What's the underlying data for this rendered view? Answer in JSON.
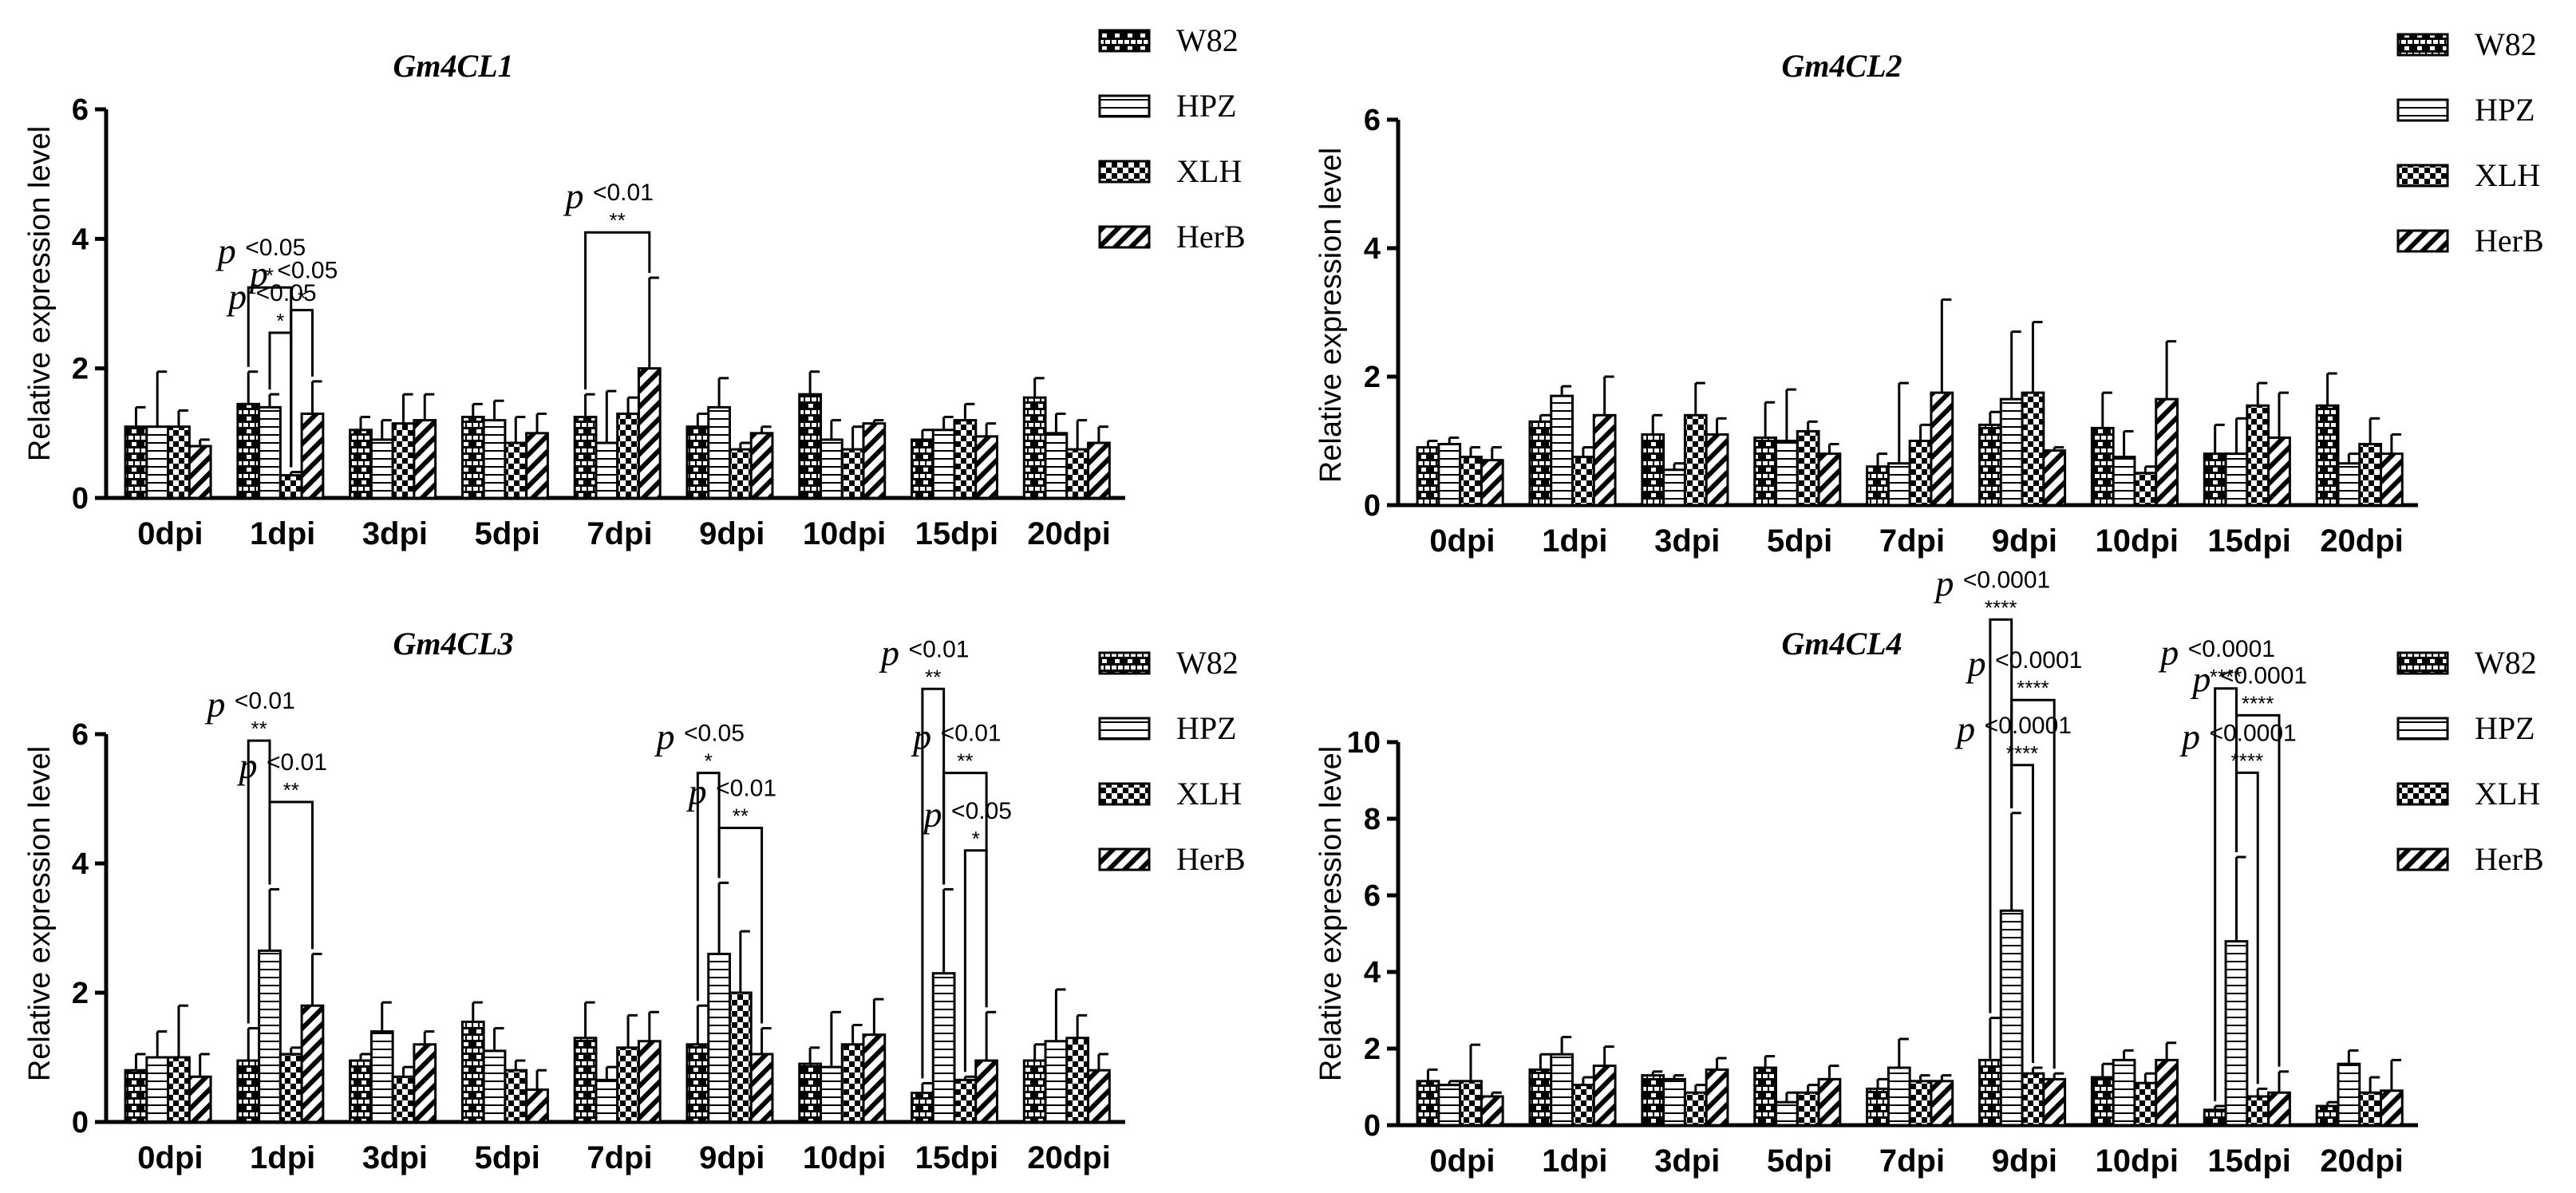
{
  "legend": [
    "W82",
    "HPZ",
    "XLH",
    "HerB"
  ],
  "chart_data": [
    {
      "type": "bar",
      "title": "Gm4CL1",
      "ylabel": "Relative  expression level",
      "xlabel": "",
      "ylim": [
        0,
        6
      ],
      "yticks": [
        "0",
        "2",
        "4",
        "6"
      ],
      "categories": [
        "0dpi",
        "1dpi",
        "3dpi",
        "5dpi",
        "7dpi",
        "9dpi",
        "10dpi",
        "15dpi",
        "20dpi"
      ],
      "series": [
        {
          "name": "W82",
          "values": [
            1.1,
            1.45,
            1.05,
            1.25,
            1.25,
            1.1,
            1.6,
            0.9,
            1.55
          ],
          "errors": [
            0.3,
            0.5,
            0.2,
            0.2,
            0.35,
            0.2,
            0.35,
            0.15,
            0.3
          ]
        },
        {
          "name": "HPZ",
          "values": [
            1.1,
            1.4,
            0.9,
            1.2,
            0.85,
            1.4,
            0.9,
            1.05,
            1.0
          ],
          "errors": [
            0.85,
            0.2,
            0.3,
            0.3,
            0.8,
            0.45,
            0.3,
            0.2,
            0.3
          ]
        },
        {
          "name": "XLH",
          "values": [
            1.1,
            0.35,
            1.15,
            0.85,
            1.3,
            0.75,
            0.75,
            1.2,
            0.75
          ],
          "errors": [
            0.25,
            0.05,
            0.45,
            0.4,
            0.25,
            0.1,
            0.35,
            0.25,
            0.45
          ]
        },
        {
          "name": "HerB",
          "values": [
            0.8,
            1.3,
            1.2,
            1.0,
            2.0,
            1.0,
            1.15,
            0.95,
            0.85
          ],
          "errors": [
            0.1,
            0.5,
            0.4,
            0.3,
            1.4,
            0.1,
            0.05,
            0.2,
            0.25
          ]
        }
      ],
      "annotations": [
        {
          "label": "p <0.05",
          "stars": "*",
          "cat": 1,
          "from": 0,
          "to": 2,
          "level": 3.25
        },
        {
          "label": "p <0.05",
          "stars": "*",
          "cat": 1,
          "from": 2,
          "to": 3,
          "level": 2.9
        },
        {
          "label": "p <0.05",
          "stars": "*",
          "cat": 1,
          "from": 1,
          "to": 2,
          "level": 2.55
        },
        {
          "label": "p <0.01",
          "stars": "**",
          "cat": 4,
          "from": 0,
          "to": 3,
          "level": 4.1
        }
      ]
    },
    {
      "type": "bar",
      "title": "Gm4CL2",
      "ylabel": "Relative  expression level",
      "xlabel": "",
      "ylim": [
        0,
        6
      ],
      "yticks": [
        "0",
        "2",
        "4",
        "6"
      ],
      "categories": [
        "0dpi",
        "1dpi",
        "3dpi",
        "5dpi",
        "7dpi",
        "9dpi",
        "10dpi",
        "15dpi",
        "20dpi"
      ],
      "series": [
        {
          "name": "W82",
          "values": [
            0.9,
            1.3,
            1.1,
            1.05,
            0.6,
            1.25,
            1.2,
            0.8,
            1.55
          ],
          "errors": [
            0.1,
            0.1,
            0.3,
            0.55,
            0.2,
            0.2,
            0.55,
            0.45,
            0.5
          ]
        },
        {
          "name": "HPZ",
          "values": [
            0.95,
            1.7,
            0.55,
            1.0,
            0.65,
            1.65,
            0.75,
            0.8,
            0.65
          ],
          "errors": [
            0.1,
            0.15,
            0.1,
            0.8,
            1.25,
            1.05,
            0.4,
            0.55,
            0.15
          ]
        },
        {
          "name": "XLH",
          "values": [
            0.75,
            0.75,
            1.4,
            1.15,
            1.0,
            1.75,
            0.5,
            1.55,
            0.95
          ],
          "errors": [
            0.15,
            0.15,
            0.5,
            0.15,
            0.25,
            1.1,
            0.1,
            0.35,
            0.4
          ]
        },
        {
          "name": "HerB",
          "values": [
            0.7,
            1.4,
            1.1,
            0.8,
            1.75,
            0.85,
            1.65,
            1.05,
            0.8
          ],
          "errors": [
            0.2,
            0.6,
            0.25,
            0.15,
            1.45,
            0.05,
            0.9,
            0.7,
            0.3
          ]
        }
      ],
      "annotations": []
    },
    {
      "type": "bar",
      "title": "Gm4CL3",
      "ylabel": "Relative  expression level",
      "xlabel": "",
      "ylim": [
        0,
        6
      ],
      "yticks": [
        "0",
        "2",
        "4",
        "6"
      ],
      "categories": [
        "0dpi",
        "1dpi",
        "3dpi",
        "5dpi",
        "7dpi",
        "9dpi",
        "10dpi",
        "15dpi",
        "20dpi"
      ],
      "series": [
        {
          "name": "W82",
          "values": [
            0.8,
            0.95,
            0.95,
            1.55,
            1.3,
            1.2,
            0.9,
            0.45,
            0.95
          ],
          "errors": [
            0.25,
            0.5,
            0.1,
            0.3,
            0.55,
            0.6,
            0.25,
            0.15,
            0.25
          ]
        },
        {
          "name": "HPZ",
          "values": [
            1.0,
            2.65,
            1.4,
            1.1,
            0.65,
            2.6,
            0.85,
            2.3,
            1.25
          ],
          "errors": [
            0.4,
            0.95,
            0.45,
            0.35,
            0.2,
            1.1,
            0.85,
            1.3,
            0.8
          ]
        },
        {
          "name": "XLH",
          "values": [
            1.0,
            1.05,
            0.7,
            0.8,
            1.15,
            2.0,
            1.2,
            0.65,
            1.3
          ],
          "errors": [
            0.8,
            0.1,
            0.15,
            0.15,
            0.5,
            0.95,
            0.3,
            0.05,
            0.35
          ]
        },
        {
          "name": "HerB",
          "values": [
            0.7,
            1.8,
            1.2,
            0.5,
            1.25,
            1.05,
            1.35,
            0.95,
            0.8
          ],
          "errors": [
            0.35,
            0.8,
            0.2,
            0.3,
            0.45,
            0.4,
            0.55,
            0.75,
            0.25
          ]
        }
      ],
      "annotations": [
        {
          "label": "p <0.01",
          "stars": "**",
          "cat": 1,
          "from": 0,
          "to": 1,
          "level": 5.9
        },
        {
          "label": "p <0.01",
          "stars": "**",
          "cat": 1,
          "from": 1,
          "to": 3,
          "level": 4.95
        },
        {
          "label": "p <0.05",
          "stars": "*",
          "cat": 5,
          "from": 0,
          "to": 1,
          "level": 5.4
        },
        {
          "label": "p <0.01",
          "stars": "**",
          "cat": 5,
          "from": 1,
          "to": 3,
          "level": 4.55
        },
        {
          "label": "p <0.01",
          "stars": "**",
          "cat": 7,
          "from": 0,
          "to": 1,
          "level": 6.7
        },
        {
          "label": "p <0.01",
          "stars": "**",
          "cat": 7,
          "from": 1,
          "to": 3,
          "level": 5.4
        },
        {
          "label": "p <0.05",
          "stars": "*",
          "cat": 7,
          "from": 2,
          "to": 3,
          "level": 4.2
        }
      ]
    },
    {
      "type": "bar",
      "title": "Gm4CL4",
      "ylabel": "Relative  expression level",
      "xlabel": "",
      "ylim": [
        0,
        10
      ],
      "yticks": [
        "0",
        "2",
        "4",
        "6",
        "8",
        "10"
      ],
      "categories": [
        "0dpi",
        "1dpi",
        "3dpi",
        "5dpi",
        "7dpi",
        "9dpi",
        "10dpi",
        "15dpi",
        "20dpi"
      ],
      "series": [
        {
          "name": "W82",
          "values": [
            1.15,
            1.45,
            1.3,
            1.5,
            0.95,
            1.7,
            1.25,
            0.4,
            0.5
          ],
          "errors": [
            0.3,
            0.4,
            0.1,
            0.3,
            0.25,
            1.1,
            0.35,
            0.1,
            0.1
          ]
        },
        {
          "name": "HPZ",
          "values": [
            1.05,
            1.85,
            1.2,
            0.6,
            1.5,
            5.6,
            1.7,
            4.8,
            1.6
          ],
          "errors": [
            0.1,
            0.45,
            0.1,
            0.25,
            0.75,
            2.55,
            0.25,
            2.2,
            0.35
          ]
        },
        {
          "name": "XLH",
          "values": [
            1.15,
            1.05,
            0.85,
            0.85,
            1.15,
            1.35,
            1.1,
            0.75,
            0.85
          ],
          "errors": [
            0.95,
            0.2,
            0.2,
            0.2,
            0.15,
            0.15,
            0.25,
            0.2,
            0.4
          ]
        },
        {
          "name": "HerB",
          "values": [
            0.75,
            1.55,
            1.45,
            1.2,
            1.15,
            1.2,
            1.7,
            0.85,
            0.9
          ],
          "errors": [
            0.1,
            0.5,
            0.3,
            0.35,
            0.15,
            0.15,
            0.45,
            0.55,
            0.8
          ]
        }
      ],
      "annotations": [
        {
          "label": "p <0.0001",
          "stars": "****",
          "cat": 5,
          "from": 0,
          "to": 1,
          "level": 13.2
        },
        {
          "label": "p <0.0001",
          "stars": "****",
          "cat": 5,
          "from": 1,
          "to": 3,
          "level": 11.1
        },
        {
          "label": "p <0.0001",
          "stars": "****",
          "cat": 5,
          "from": 1,
          "to": 2,
          "level": 9.4
        },
        {
          "label": "p <0.0001",
          "stars": "****",
          "cat": 7,
          "from": 0,
          "to": 1,
          "level": 11.4
        },
        {
          "label": "p <0.0001",
          "stars": "****",
          "cat": 7,
          "from": 1,
          "to": 3,
          "level": 10.7
        },
        {
          "label": "p <0.0001",
          "stars": "****",
          "cat": 7,
          "from": 1,
          "to": 2,
          "level": 9.2
        }
      ]
    }
  ]
}
